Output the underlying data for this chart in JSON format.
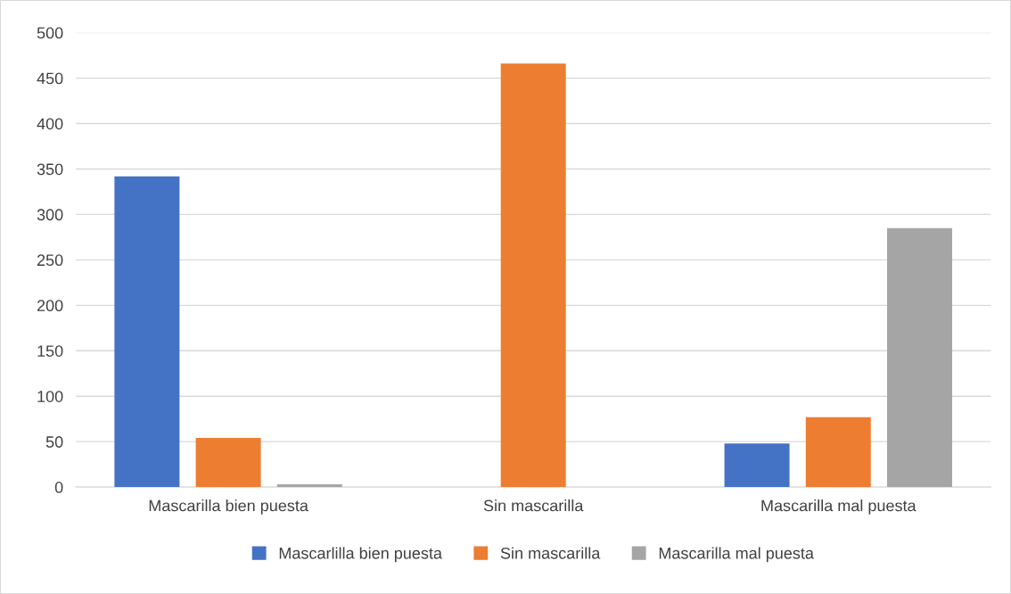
{
  "chart_data": {
    "type": "bar",
    "categories": [
      "Mascarilla bien puesta",
      "Sin mascarilla",
      "Mascarilla mal puesta"
    ],
    "series": [
      {
        "name": "Mascarlilla bien puesta",
        "color": "#4472c4",
        "values": [
          342,
          0,
          48
        ]
      },
      {
        "name": "Sin mascarilla",
        "color": "#ed7d31",
        "values": [
          54,
          466,
          77
        ]
      },
      {
        "name": "Mascarilla mal puesta",
        "color": "#a5a5a5",
        "values": [
          3,
          0,
          285
        ]
      }
    ],
    "ylim": [
      0,
      500
    ],
    "yticks": [
      0,
      50,
      100,
      150,
      200,
      250,
      300,
      350,
      400,
      450,
      500
    ],
    "grid": "y",
    "legend": "bottom"
  }
}
